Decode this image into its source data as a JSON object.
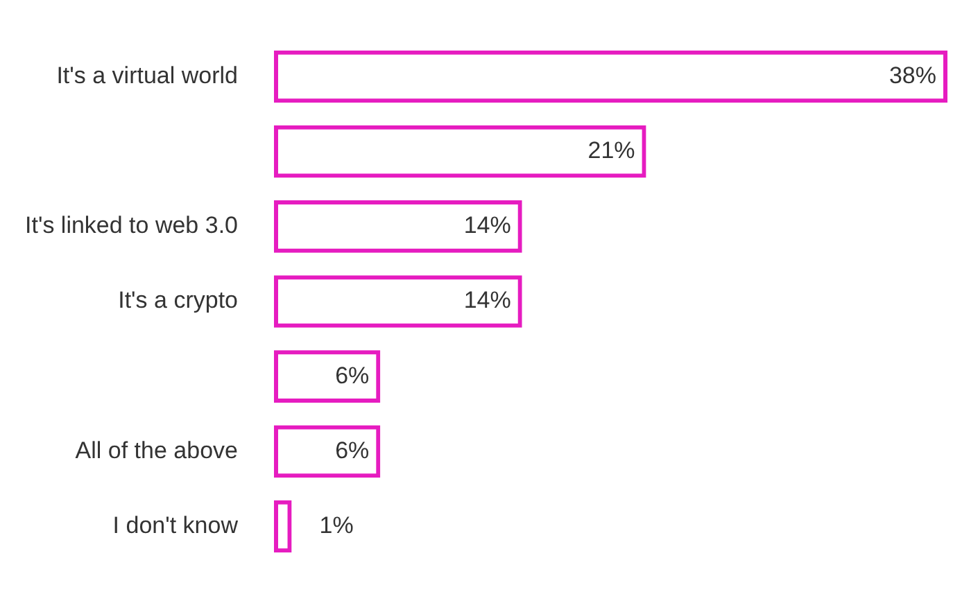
{
  "chart_data": {
    "type": "bar",
    "orientation": "horizontal",
    "categories": [
      "It's a virtual world",
      null,
      "It's linked to web 3.0",
      "It's a crypto",
      null,
      "All of the above",
      "I don't know"
    ],
    "values": [
      38,
      21,
      14,
      14,
      6,
      6,
      1
    ],
    "value_labels": [
      "38%",
      "21%",
      "14%",
      "14%",
      "6%",
      "6%",
      "1%"
    ],
    "color": "#e61cc0",
    "legend": false
  }
}
